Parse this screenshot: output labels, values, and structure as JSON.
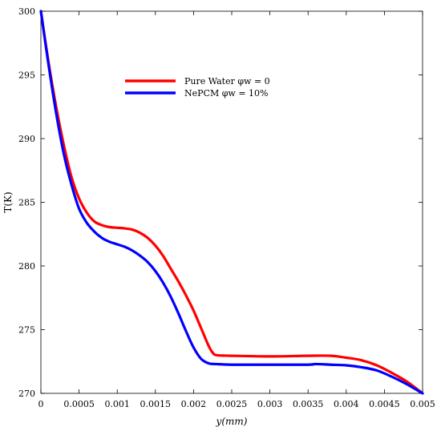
{
  "chart_data": {
    "type": "line",
    "title": "",
    "xlabel": "y(mm)",
    "ylabel": "T(K)",
    "xlim": [
      0,
      0.005
    ],
    "ylim": [
      270,
      300
    ],
    "xticks": [
      0,
      0.0005,
      0.001,
      0.0015,
      0.002,
      0.0025,
      0.003,
      0.0035,
      0.004,
      0.0045,
      0.005
    ],
    "xtick_labels": [
      "0",
      "0.0005",
      "0.001",
      "0.0015",
      "0.002",
      "0.0025",
      "0.003",
      "0.0035",
      "0.004",
      "0.0045",
      "0.005"
    ],
    "yticks": [
      270,
      275,
      280,
      285,
      290,
      295,
      300
    ],
    "ytick_labels": [
      "270",
      "275",
      "280",
      "285",
      "290",
      "295",
      "300"
    ],
    "grid": false,
    "legend_position": "top-center",
    "series": [
      {
        "name": "Pure Water φw = 0",
        "color": "#ff0000",
        "x": [
          0,
          0.0001,
          0.0002,
          0.0003,
          0.0004,
          0.0005,
          0.0006,
          0.0007,
          0.0008,
          0.0009,
          0.001,
          0.0011,
          0.0012,
          0.0013,
          0.0014,
          0.0015,
          0.0016,
          0.0017,
          0.0018,
          0.0019,
          0.002,
          0.0021,
          0.0022,
          0.00225,
          0.0023,
          0.0025,
          0.003,
          0.0035,
          0.0038,
          0.004,
          0.0042,
          0.0044,
          0.0046,
          0.0048,
          0.005
        ],
        "y": [
          300,
          296.0,
          292.5,
          289.5,
          287.0,
          285.3,
          284.2,
          283.5,
          283.2,
          283.05,
          283.0,
          282.95,
          282.85,
          282.6,
          282.2,
          281.6,
          280.8,
          279.8,
          278.8,
          277.7,
          276.5,
          275.1,
          273.7,
          273.2,
          273.0,
          272.95,
          272.9,
          272.95,
          272.95,
          272.8,
          272.6,
          272.2,
          271.6,
          270.9,
          270.0
        ]
      },
      {
        "name": "NePCM φw = 10%",
        "color": "#0000ff",
        "x": [
          0,
          0.0001,
          0.0002,
          0.0003,
          0.0004,
          0.0005,
          0.0006,
          0.0007,
          0.0008,
          0.0009,
          0.001,
          0.0011,
          0.0012,
          0.0013,
          0.0014,
          0.0015,
          0.0016,
          0.0017,
          0.0018,
          0.0019,
          0.002,
          0.0021,
          0.0022,
          0.0023,
          0.0025,
          0.003,
          0.0035,
          0.0036,
          0.0038,
          0.004,
          0.0042,
          0.0044,
          0.0046,
          0.0048,
          0.005
        ],
        "y": [
          300,
          295.8,
          292.0,
          288.8,
          286.4,
          284.5,
          283.4,
          282.7,
          282.2,
          281.9,
          281.7,
          281.5,
          281.2,
          280.8,
          280.3,
          279.6,
          278.7,
          277.6,
          276.3,
          274.9,
          273.6,
          272.7,
          272.35,
          272.3,
          272.25,
          272.25,
          272.25,
          272.3,
          272.25,
          272.2,
          272.05,
          271.8,
          271.3,
          270.7,
          270.0
        ]
      }
    ],
    "legend": [
      {
        "text": "Pure Water φw = 0",
        "color": "#ff0000"
      },
      {
        "text": "NePCM φw = 10%",
        "color": "#0000ff"
      }
    ]
  }
}
